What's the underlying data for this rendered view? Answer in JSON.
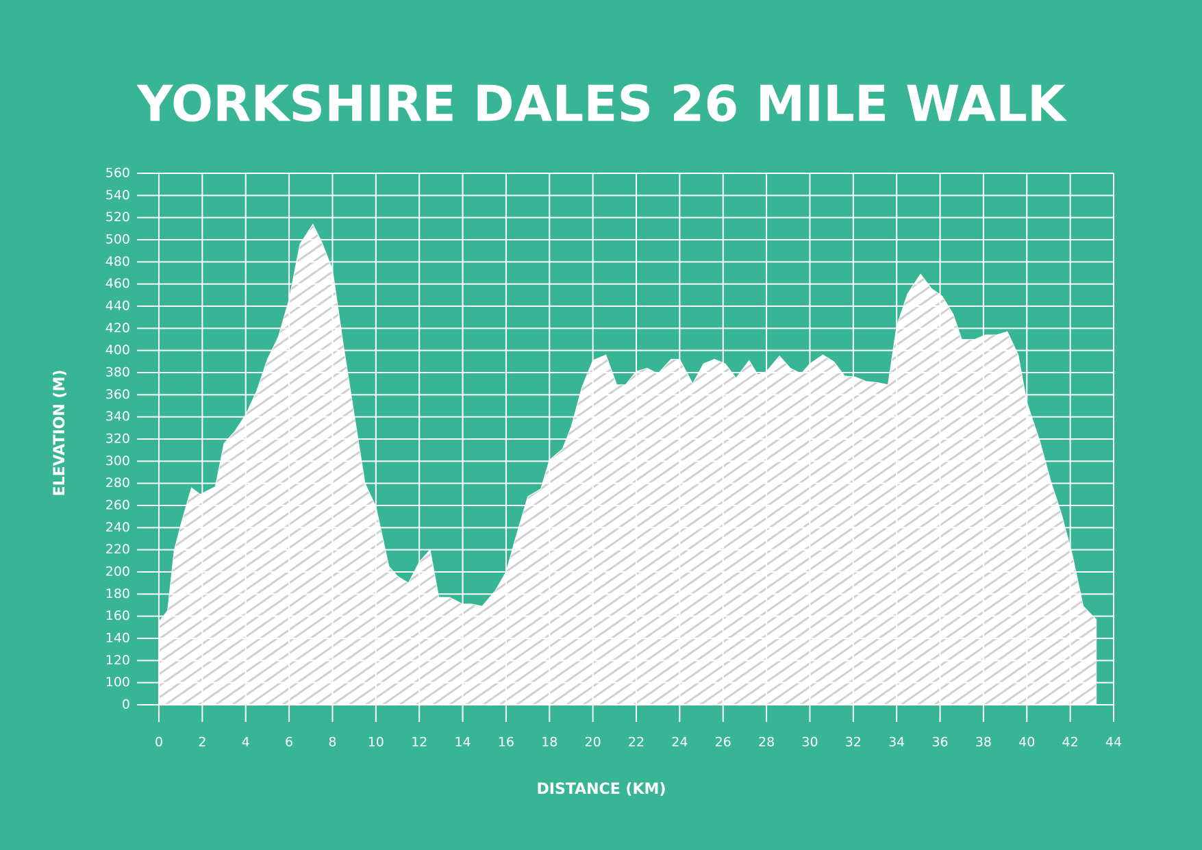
{
  "chart_data": {
    "type": "area",
    "title": "YORKSHIRE DALES 26 MILE WALK",
    "x_label": "DISTANCE (KM)",
    "y_label": "ELEVATION (M)",
    "x": [
      0,
      0.4,
      0.7,
      1.0,
      1.5,
      1.9,
      2.6,
      3.0,
      3.5,
      4.0,
      4.5,
      5.0,
      5.5,
      6.0,
      6.5,
      7.1,
      7.5,
      8.0,
      8.5,
      9.0,
      9.5,
      10.0,
      10.6,
      11.0,
      11.5,
      12.0,
      12.5,
      12.9,
      13.4,
      14.0,
      14.4,
      14.9,
      15.5,
      16.0,
      16.4,
      17.0,
      17.6,
      18.0,
      18.6,
      19.0,
      19.5,
      20.0,
      20.6,
      21.1,
      21.5,
      22.0,
      22.5,
      23.0,
      23.6,
      24.0,
      24.6,
      25.1,
      25.6,
      26.1,
      26.6,
      27.2,
      27.6,
      28.0,
      28.6,
      29.1,
      29.6,
      30.0,
      30.6,
      31.1,
      31.6,
      32.1,
      32.6,
      33.1,
      33.6,
      34.0,
      34.5,
      35.1,
      35.6,
      36.1,
      36.6,
      37.0,
      37.6,
      38.1,
      38.6,
      39.1,
      39.6,
      40.0,
      40.6,
      41.1,
      41.6,
      42.1,
      42.6,
      43.2
    ],
    "values": [
      155,
      165,
      219,
      242,
      276,
      270,
      277,
      316,
      327,
      342,
      363,
      392,
      412,
      446,
      496,
      514,
      498,
      473,
      405,
      342,
      280,
      259,
      205,
      196,
      190,
      209,
      220,
      177,
      177,
      171,
      171,
      169,
      183,
      200,
      228,
      268,
      275,
      301,
      311,
      331,
      367,
      391,
      396,
      369,
      369,
      381,
      384,
      379,
      392,
      392,
      370,
      388,
      392,
      388,
      375,
      391,
      378,
      381,
      395,
      384,
      379,
      388,
      396,
      390,
      377,
      376,
      372,
      371,
      369,
      422,
      451,
      469,
      456,
      449,
      433,
      410,
      410,
      414,
      414,
      417,
      396,
      353,
      318,
      282,
      252,
      215,
      169,
      157
    ],
    "color": "#ffffff",
    "xlim": [
      0,
      44
    ],
    "xticks": [
      0,
      2,
      4,
      6,
      8,
      10,
      12,
      14,
      16,
      18,
      20,
      22,
      24,
      26,
      28,
      30,
      32,
      34,
      36,
      38,
      40,
      42,
      44
    ],
    "ylim": [
      0,
      560
    ],
    "yticks": [
      0,
      100,
      120,
      140,
      160,
      180,
      200,
      220,
      240,
      260,
      280,
      300,
      320,
      340,
      360,
      380,
      400,
      420,
      440,
      460,
      480,
      500,
      520,
      540,
      560
    ],
    "y_scale": "broken",
    "grid": true
  }
}
